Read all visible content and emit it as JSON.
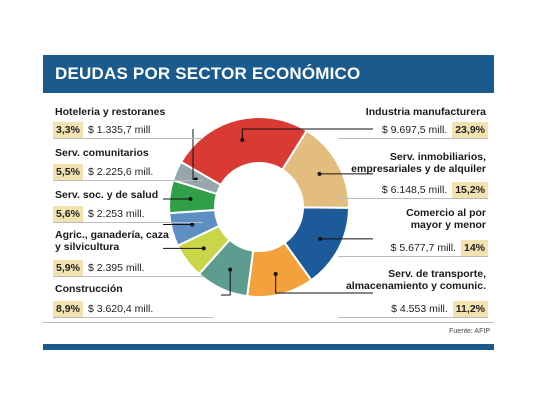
{
  "title": "DEUDAS POR SECTOR ECONÓMICO",
  "source": "Fuente: AFIP",
  "colors": {
    "header": "#1b5a8c",
    "pct_bg": "#f2e2b0"
  },
  "chart_data": {
    "type": "pie",
    "donut": true,
    "title": "DEUDAS POR SECTOR ECONÓMICO",
    "segments": [
      {
        "label": "Industria manufacturera",
        "amount": "$ 9.697,5 mill.",
        "percent_label": "23,9%",
        "value": 23.9,
        "color": "#d93a34"
      },
      {
        "label": "Serv. inmobiliarios, empresariales y de alquiler",
        "amount": "$ 6.148,5 mill.",
        "percent_label": "15,2%",
        "value": 15.2,
        "color": "#e2bd7e"
      },
      {
        "label": "Comercio al por mayor y menor",
        "amount": "$ 5.677,7 mill.",
        "percent_label": "14%",
        "value": 14.0,
        "color": "#1d5a99"
      },
      {
        "label": "Serv. de transporte, almacenamiento y comunic.",
        "amount": "$ 4.553 mill.",
        "percent_label": "11,2%",
        "value": 11.2,
        "color": "#f3a13a"
      },
      {
        "label": "Construcción",
        "amount": "$ 3.620,4 mill.",
        "percent_label": "8,9%",
        "value": 8.9,
        "color": "#5e9c90"
      },
      {
        "label": "Agric., ganadería, caza y silvicultura",
        "amount": "$ 2.395 mill.",
        "percent_label": "5,9%",
        "value": 5.9,
        "color": "#c9d64a"
      },
      {
        "label": "Serv. soc. y de salud",
        "amount": "$ 2.253 mill.",
        "percent_label": "5,6%",
        "value": 5.6,
        "color": "#5e8fc2"
      },
      {
        "label": "Serv. comunitarios",
        "amount": "$ 2.225,6 mill.",
        "percent_label": "5,5%",
        "value": 5.5,
        "color": "#2fa048"
      },
      {
        "label": "Hoteleria y restoranes",
        "amount": "$ 1.335,7 mill",
        "percent_label": "3,3%",
        "value": 3.3,
        "color": "#95a7ad"
      }
    ]
  }
}
